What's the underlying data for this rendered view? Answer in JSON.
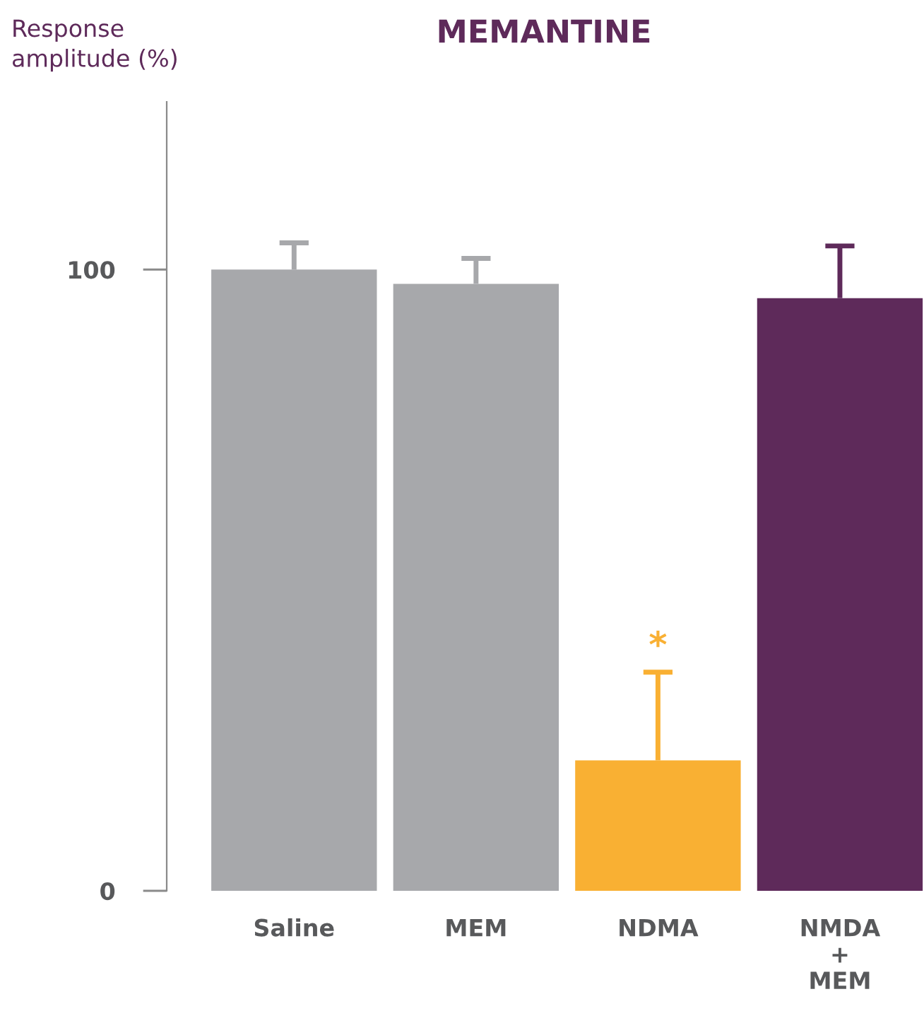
{
  "chart_data": {
    "type": "bar",
    "title": "MEMANTINE",
    "ylabel": "Response amplitude (%)",
    "categories": [
      "Saline",
      "MEM",
      "NDMA",
      "NMDA\n+\nMEM"
    ],
    "values": [
      100,
      97.7,
      21,
      95.4
    ],
    "errors": [
      [
        100,
        104.3
      ],
      [
        97.7,
        101.8
      ],
      [
        21,
        35.2
      ],
      [
        95.4,
        103.8
      ]
    ],
    "colors": [
      "#a7a8ab",
      "#a7a8ab",
      "#f9b033",
      "#5e2a5a"
    ],
    "ylim": [
      0,
      127
    ],
    "yticks": [
      0,
      100
    ],
    "grid": false,
    "annotations": [
      {
        "text": "*",
        "x": "NDMA",
        "y": 35.2
      }
    ]
  }
}
